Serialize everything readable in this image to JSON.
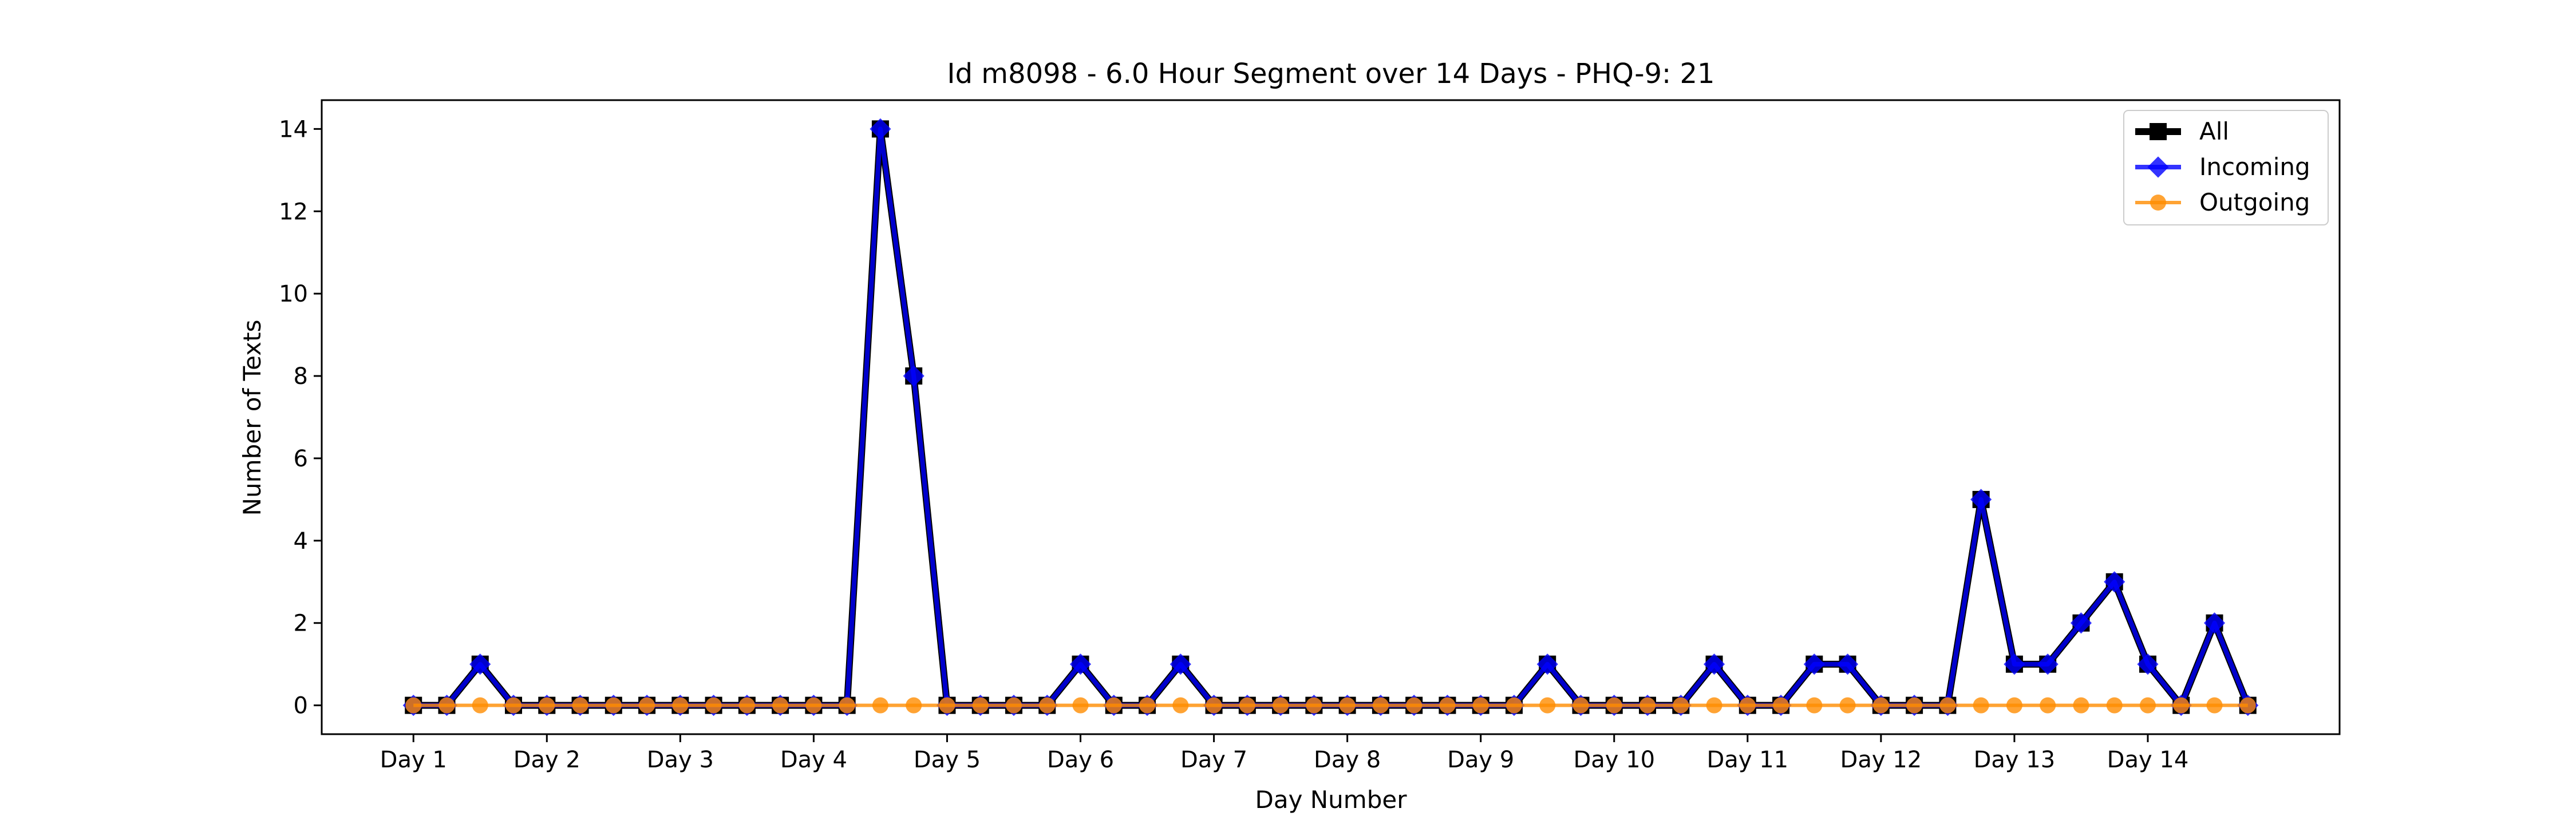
{
  "chart_data": {
    "type": "line",
    "title": "Id m8098 - 6.0 Hour Segment over 14 Days - PHQ-9: 21",
    "xlabel": "Day Number",
    "ylabel": "Number of Texts",
    "x": [
      0,
      1,
      2,
      3,
      4,
      5,
      6,
      7,
      8,
      9,
      10,
      11,
      12,
      13,
      14,
      15,
      16,
      17,
      18,
      19,
      20,
      21,
      22,
      23,
      24,
      25,
      26,
      27,
      28,
      29,
      30,
      31,
      32,
      33,
      34,
      35,
      36,
      37,
      38,
      39,
      40,
      41,
      42,
      43,
      44,
      45,
      46,
      47,
      48,
      49,
      50,
      51,
      52,
      53,
      54,
      55
    ],
    "xticks": [
      0,
      4,
      8,
      12,
      16,
      20,
      24,
      28,
      32,
      36,
      40,
      44,
      48,
      52
    ],
    "xtick_labels": [
      "Day 1",
      "Day 2",
      "Day 3",
      "Day 4",
      "Day 5",
      "Day 6",
      "Day 7",
      "Day 8",
      "Day 9",
      "Day 10",
      "Day 11",
      "Day 12",
      "Day 13",
      "Day 14"
    ],
    "xlim": [
      -2.75,
      57.75
    ],
    "ylim": [
      -0.7,
      14.7
    ],
    "yticks": [
      0,
      2,
      4,
      6,
      8,
      10,
      12,
      14
    ],
    "grid": false,
    "legend_position": "top-right",
    "series": [
      {
        "name": "All",
        "color": "#000000",
        "marker": "square",
        "values": [
          0,
          0,
          1,
          0,
          0,
          0,
          0,
          0,
          0,
          0,
          0,
          0,
          0,
          0,
          14,
          8,
          0,
          0,
          0,
          0,
          1,
          0,
          0,
          1,
          0,
          0,
          0,
          0,
          0,
          0,
          0,
          0,
          0,
          0,
          1,
          0,
          0,
          0,
          0,
          1,
          0,
          0,
          1,
          1,
          0,
          0,
          0,
          5,
          1,
          1,
          2,
          3,
          1,
          0,
          2,
          0
        ]
      },
      {
        "name": "Incoming",
        "color": "#0000ff",
        "marker": "diamond",
        "values": [
          0,
          0,
          1,
          0,
          0,
          0,
          0,
          0,
          0,
          0,
          0,
          0,
          0,
          0,
          14,
          8,
          0,
          0,
          0,
          0,
          1,
          0,
          0,
          1,
          0,
          0,
          0,
          0,
          0,
          0,
          0,
          0,
          0,
          0,
          1,
          0,
          0,
          0,
          0,
          1,
          0,
          0,
          1,
          1,
          0,
          0,
          0,
          5,
          1,
          1,
          2,
          3,
          1,
          0,
          2,
          0
        ]
      },
      {
        "name": "Outgoing",
        "color": "#ff8c00",
        "marker": "circle",
        "values": [
          0,
          0,
          0,
          0,
          0,
          0,
          0,
          0,
          0,
          0,
          0,
          0,
          0,
          0,
          0,
          0,
          0,
          0,
          0,
          0,
          0,
          0,
          0,
          0,
          0,
          0,
          0,
          0,
          0,
          0,
          0,
          0,
          0,
          0,
          0,
          0,
          0,
          0,
          0,
          0,
          0,
          0,
          0,
          0,
          0,
          0,
          0,
          0,
          0,
          0,
          0,
          0,
          0,
          0,
          0,
          0
        ]
      }
    ]
  }
}
